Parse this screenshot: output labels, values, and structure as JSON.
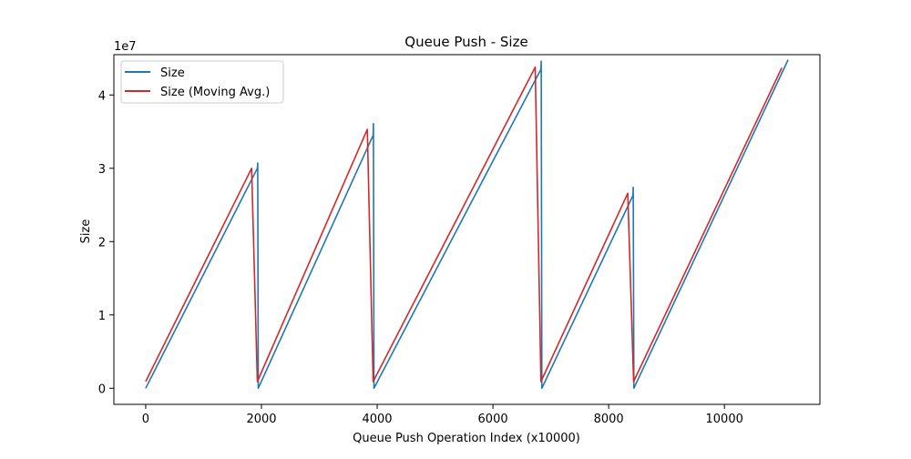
{
  "chart_data": {
    "type": "line",
    "title": "Queue Push - Size",
    "xlabel": "Queue Push Operation Index (x10000)",
    "ylabel": "Size",
    "y_offset_text": "1e7",
    "xlim": [
      -550,
      11650
    ],
    "ylim": [
      -0.22,
      4.55
    ],
    "y_unit_multiplier": 10000000,
    "x_ticks": [
      0,
      2000,
      4000,
      6000,
      8000,
      10000
    ],
    "x_tick_labels": [
      "0",
      "2000",
      "4000",
      "6000",
      "8000",
      "10000"
    ],
    "y_ticks": [
      0,
      1,
      2,
      3,
      4
    ],
    "y_tick_labels": [
      "0",
      "1",
      "2",
      "3",
      "4"
    ],
    "grid": false,
    "legend_position": "top-left",
    "series": [
      {
        "name": "Size",
        "color": "#1f77b4",
        "points": [
          [
            0,
            0
          ],
          [
            1930,
            3.0
          ],
          [
            1935,
            3.07
          ],
          [
            1945,
            0.0
          ],
          [
            3930,
            3.45
          ],
          [
            3935,
            3.61
          ],
          [
            3945,
            0.0
          ],
          [
            6830,
            4.35
          ],
          [
            6835,
            4.46
          ],
          [
            6845,
            0.0
          ],
          [
            8420,
            2.63
          ],
          [
            8425,
            2.74
          ],
          [
            8435,
            0.0
          ],
          [
            11100,
            4.48
          ]
        ]
      },
      {
        "name": "Size (Moving Avg.)",
        "color": "#d62728",
        "points": [
          [
            0,
            0.09
          ],
          [
            1830,
            3.0
          ],
          [
            1930,
            0.09
          ],
          [
            3830,
            3.53
          ],
          [
            3930,
            0.09
          ],
          [
            6730,
            4.38
          ],
          [
            6830,
            0.09
          ],
          [
            8330,
            2.66
          ],
          [
            8430,
            0.09
          ],
          [
            10990,
            4.37
          ]
        ]
      }
    ]
  }
}
